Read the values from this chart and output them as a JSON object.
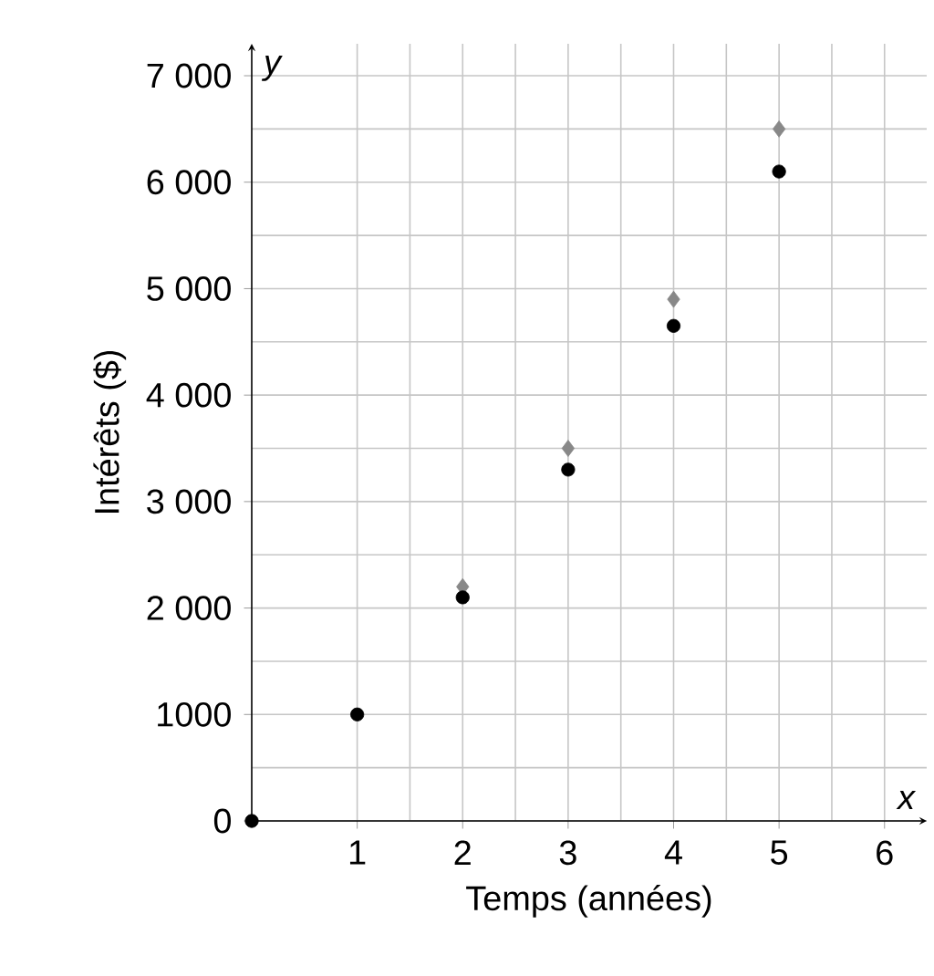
{
  "chart_data": {
    "type": "scatter",
    "xlabel": "Temps (années)",
    "ylabel": "Intérêts ($)",
    "annotations": [
      "x",
      "y"
    ],
    "xlim": [
      0,
      6.4
    ],
    "ylim": [
      0,
      7300
    ],
    "xticks": [
      1,
      2,
      3,
      4,
      5,
      6
    ],
    "yticks": [
      0,
      1000,
      {
        "value": 2000,
        "label": "2 000"
      },
      {
        "value": 3000,
        "label": "3 000"
      },
      {
        "value": 4000,
        "label": "4 000"
      },
      {
        "value": 5000,
        "label": "5 000"
      },
      {
        "value": 6000,
        "label": "6 000"
      },
      {
        "value": 7000,
        "label": "7 000"
      }
    ],
    "grid": true,
    "series": [
      {
        "color": "#888888",
        "marker": "diamond",
        "x": [
          2,
          3,
          4,
          5
        ],
        "values": [
          2200,
          3500,
          4900,
          6500
        ]
      },
      {
        "color": "#000000",
        "marker": "circle",
        "x": [
          0,
          1,
          2,
          3,
          4,
          5
        ],
        "values": [
          0,
          1000,
          2100,
          3300,
          4650,
          6100
        ]
      }
    ]
  }
}
